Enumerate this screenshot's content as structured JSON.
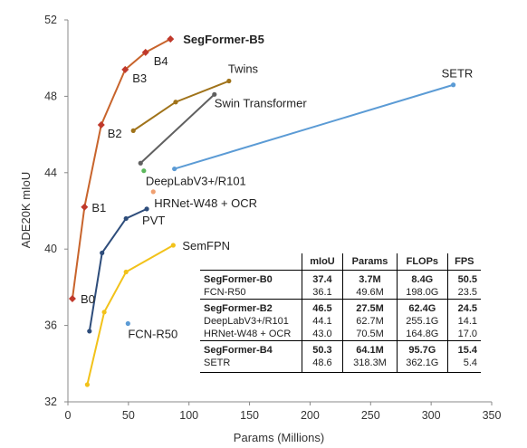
{
  "chart_data": {
    "type": "line",
    "xlabel": "Params (Millions)",
    "ylabel": "ADE20K mIoU",
    "xlim": [
      0,
      350
    ],
    "ylim": [
      32,
      52
    ],
    "xticks": [
      0,
      50,
      100,
      150,
      200,
      250,
      300,
      350
    ],
    "yticks": [
      32,
      36,
      40,
      44,
      48,
      52
    ],
    "grid": false,
    "series": [
      {
        "name": "SegFormer-B5",
        "color": "#c0392b",
        "line_color": "#c8642c",
        "marker": "diamond",
        "points": [
          [
            3.7,
            37.4
          ],
          [
            13.7,
            42.2
          ],
          [
            27.5,
            46.5
          ],
          [
            47.3,
            49.4
          ],
          [
            64.1,
            50.3
          ],
          [
            84.7,
            51.0
          ]
        ],
        "point_labels": [
          "B0",
          "B1",
          "B2",
          "B3",
          "B4",
          "SegFormer-B5"
        ]
      },
      {
        "name": "Twins",
        "color": "#a0731a",
        "marker": "circle",
        "points": [
          [
            54,
            46.2
          ],
          [
            89,
            47.7
          ],
          [
            133,
            48.8
          ]
        ]
      },
      {
        "name": "Swin Transformer",
        "color": "#606060",
        "marker": "circle",
        "points": [
          [
            60,
            44.5
          ],
          [
            121,
            48.1
          ]
        ]
      },
      {
        "name": "SETR",
        "color": "#5b9bd5",
        "marker": "circle",
        "points": [
          [
            88,
            44.2
          ],
          [
            318.3,
            48.6
          ]
        ]
      },
      {
        "name": "DeeplabV3+/R101",
        "color": "#5cb85c",
        "marker": "circle",
        "points": [
          [
            62.7,
            44.1
          ]
        ]
      },
      {
        "name": "HRNet-W48 + OCR",
        "color": "#f0a070",
        "marker": "circle",
        "points": [
          [
            70.5,
            43.0
          ]
        ]
      },
      {
        "name": "PVT",
        "color": "#2e4d7b",
        "marker": "circle",
        "points": [
          [
            17.8,
            35.7
          ],
          [
            28.2,
            39.8
          ],
          [
            48.0,
            41.6
          ],
          [
            65.1,
            42.1
          ]
        ]
      },
      {
        "name": "SemFPN",
        "color": "#f2c21a",
        "marker": "circle",
        "points": [
          [
            16,
            32.9
          ],
          [
            30,
            36.7
          ],
          [
            48,
            38.8
          ],
          [
            87,
            40.2
          ]
        ]
      },
      {
        "name": "FCN-R50",
        "color": "#5b9bd5",
        "marker": "circle",
        "points": [
          [
            49.6,
            36.1
          ]
        ]
      }
    ],
    "annotations": [
      "B0",
      "B1",
      "B2",
      "B3",
      "B4",
      "SegFormer-B5",
      "Twins",
      "Swin Transformer",
      "SETR",
      "DeepLabV3+/R101",
      "HRNet-W48 + OCR",
      "PVT",
      "SemFPN",
      "FCN-R50"
    ]
  },
  "table": {
    "headers": [
      "",
      "mIoU",
      "Params",
      "FLOPs",
      "FPS"
    ],
    "groups": [
      [
        {
          "name": "SegFormer-B0",
          "bold": true,
          "values": [
            "37.4",
            "3.7M",
            "8.4G",
            "50.5"
          ]
        },
        {
          "name": "FCN-R50",
          "bold": false,
          "values": [
            "36.1",
            "49.6M",
            "198.0G",
            "23.5"
          ]
        }
      ],
      [
        {
          "name": "SegFormer-B2",
          "bold": true,
          "values": [
            "46.5",
            "27.5M",
            "62.4G",
            "24.5"
          ]
        },
        {
          "name": "DeepLabV3+/R101",
          "bold": false,
          "values": [
            "44.1",
            "62.7M",
            "255.1G",
            "14.1"
          ]
        },
        {
          "name": "HRNet-W48 + OCR",
          "bold": false,
          "values": [
            "43.0",
            "70.5M",
            "164.8G",
            "17.0"
          ]
        }
      ],
      [
        {
          "name": "SegFormer-B4",
          "bold": true,
          "values": [
            "50.3",
            "64.1M",
            "95.7G",
            "15.4"
          ]
        },
        {
          "name": "SETR",
          "bold": false,
          "values": [
            "48.6",
            "318.3M",
            "362.1G",
            "5.4"
          ]
        }
      ]
    ]
  }
}
